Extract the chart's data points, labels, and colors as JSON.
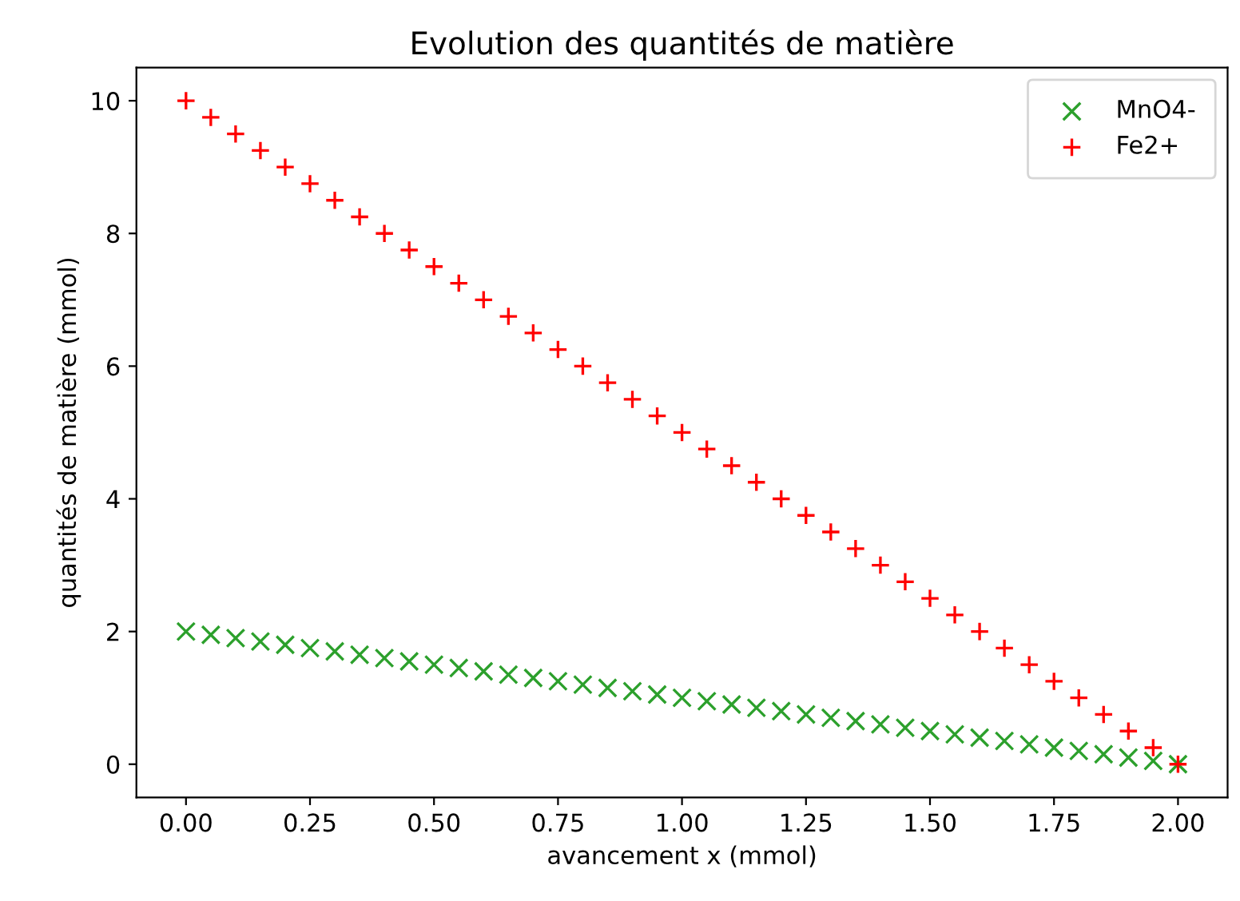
{
  "chart_data": {
    "type": "scatter",
    "title": "Evolution des quantités de matière",
    "xlabel": "avancement x (mmol)",
    "ylabel": "quantités de matière (mmol)",
    "x": [
      0,
      0.05,
      0.1,
      0.15,
      0.2,
      0.25,
      0.3,
      0.35,
      0.4,
      0.45,
      0.5,
      0.55,
      0.6,
      0.65,
      0.7,
      0.75,
      0.8,
      0.85,
      0.9,
      0.95,
      1,
      1.05,
      1.1,
      1.15,
      1.2,
      1.25,
      1.3,
      1.35,
      1.4,
      1.45,
      1.5,
      1.55,
      1.6,
      1.65,
      1.7,
      1.75,
      1.8,
      1.85,
      1.9,
      1.95,
      2
    ],
    "series": [
      {
        "name": "MnO4-",
        "color": "#2ca02c",
        "marker": "cross",
        "values": [
          2,
          1.95,
          1.9,
          1.85,
          1.8,
          1.75,
          1.7,
          1.65,
          1.6,
          1.55,
          1.5,
          1.45,
          1.4,
          1.35,
          1.3,
          1.25,
          1.2,
          1.15,
          1.1,
          1.05,
          1,
          0.95,
          0.9,
          0.85,
          0.8,
          0.75,
          0.7,
          0.65,
          0.6,
          0.55,
          0.5,
          0.45,
          0.4,
          0.35,
          0.3,
          0.25,
          0.2,
          0.15,
          0.1,
          0.05,
          0
        ]
      },
      {
        "name": "Fe2+",
        "color": "#ff0000",
        "marker": "plus",
        "values": [
          10,
          9.75,
          9.5,
          9.25,
          9,
          8.75,
          8.5,
          8.25,
          8,
          7.75,
          7.5,
          7.25,
          7,
          6.75,
          6.5,
          6.25,
          6,
          5.75,
          5.5,
          5.25,
          5,
          4.75,
          4.5,
          4.25,
          4,
          3.75,
          3.5,
          3.25,
          3,
          2.75,
          2.5,
          2.25,
          2,
          1.75,
          1.5,
          1.25,
          1,
          0.75,
          0.5,
          0.25,
          0
        ]
      }
    ],
    "xlim": [
      -0.1,
      2.1
    ],
    "xticks": [
      {
        "value": 0,
        "label": "0.00"
      },
      {
        "value": 0.25,
        "label": "0.25"
      },
      {
        "value": 0.5,
        "label": "0.50"
      },
      {
        "value": 0.75,
        "label": "0.75"
      },
      {
        "value": 1,
        "label": "1.00"
      },
      {
        "value": 1.25,
        "label": "1.25"
      },
      {
        "value": 1.5,
        "label": "1.50"
      },
      {
        "value": 1.75,
        "label": "1.75"
      },
      {
        "value": 2,
        "label": "2.00"
      }
    ],
    "ylim": [
      -0.5,
      10.5
    ],
    "yticks": [
      0,
      2,
      4,
      6,
      8,
      10
    ],
    "legend": "top right",
    "grid": false
  }
}
